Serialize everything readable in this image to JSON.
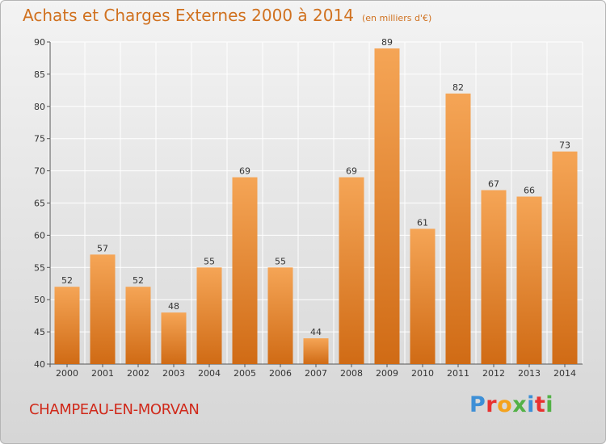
{
  "header": {
    "title": "Achats et Charges Externes 2000 à 2014",
    "unit": "(en milliers d'€)"
  },
  "footer": {
    "place": "CHAMPEAU-EN-MORVAN",
    "logo": {
      "letters": [
        "P",
        "r",
        "o",
        "x",
        "i",
        "t",
        "i"
      ],
      "colors": [
        "#3d8fd6",
        "#e8312f",
        "#f4a21c",
        "#52b146",
        "#3d8fd6",
        "#e8312f",
        "#52b146"
      ]
    }
  },
  "colors": {
    "bar_light": "#f5a556",
    "bar_dark": "#d06b15",
    "accent": "#d0711f"
  },
  "chart_data": {
    "type": "bar",
    "title": "Achats et Charges Externes 2000 à 2014",
    "subtitle": "(en milliers d'€)",
    "categories": [
      "2000",
      "2001",
      "2002",
      "2003",
      "2004",
      "2005",
      "2006",
      "2007",
      "2008",
      "2009",
      "2010",
      "2011",
      "2012",
      "2013",
      "2014"
    ],
    "values": [
      52,
      57,
      52,
      48,
      55,
      69,
      55,
      44,
      69,
      89,
      61,
      82,
      67,
      66,
      73
    ],
    "ylim": [
      40,
      90
    ],
    "yticks": [
      40,
      45,
      50,
      55,
      60,
      65,
      70,
      75,
      80,
      85,
      90
    ],
    "grid": true,
    "data_labels": true
  }
}
